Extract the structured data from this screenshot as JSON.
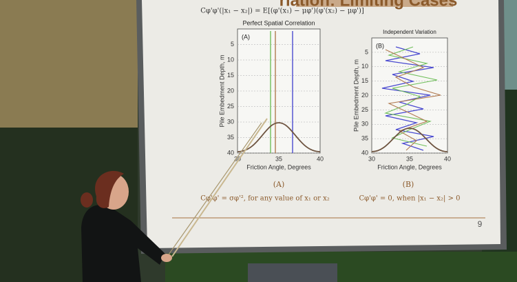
{
  "slide": {
    "title": "riation: Limiting Cases",
    "equation": "Cφ'φ'(|x₁ − x₂|) = E[(φ'(x₁) − μφ')(φ'(x₂) − μφ')]",
    "panels": [
      {
        "title": "Perfect Spatial Correlation",
        "tag": "(A)",
        "y_label": "Pile Embedment Depth, m",
        "x_label": "Friction Angle, Degrees",
        "y_ticks": [
          5,
          10,
          15,
          20,
          25,
          30,
          35,
          40
        ],
        "x_ticks": [
          30,
          35,
          40
        ],
        "caption": "(A)",
        "formula": "Cφ'φ' = σφ'², for any value of x₁ or x₂"
      },
      {
        "title": "Independent Variation",
        "tag": "(B)",
        "y_label": "Pile Embedment Depth, m",
        "x_label": "Friction Angle, Degrees",
        "y_ticks": [
          5,
          10,
          15,
          20,
          25,
          30,
          35,
          40
        ],
        "x_ticks": [
          30,
          35,
          40
        ],
        "caption": "(B)",
        "formula": "Cφ'φ' = 0, when |x₁ − x₂| > 0"
      }
    ],
    "page_number": "9"
  }
}
